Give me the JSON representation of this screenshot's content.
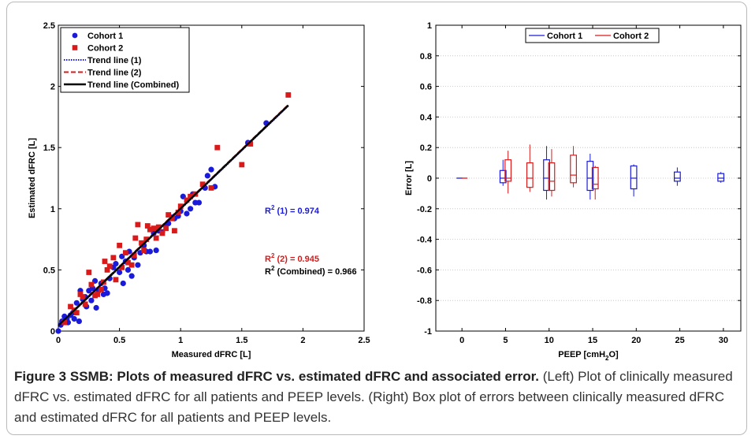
{
  "caption": {
    "label": "Figure 3",
    "title": "SSMB: Plots of measured dFRC vs. estimated dFRC and associated error.",
    "text": "(Left) Plot of clinically measured dFRC vs. estimated dFRC for all patients and PEEP levels. (Right) Box plot of errors between clinically measured dFRC and estimated dFRC for all patients and PEEP levels."
  },
  "colors": {
    "cohort1": "#1a1adb",
    "cohort2": "#d91a1a",
    "combined": "#000000"
  },
  "chart_data": [
    {
      "type": "scatter",
      "xlabel": "Measured dFRC [L]",
      "ylabel": "Estimated dFRC [L]",
      "xlim": [
        0,
        2.5
      ],
      "ylim": [
        0,
        2.5
      ],
      "xticks": [
        "0",
        "0.5",
        "1",
        "1.5",
        "2",
        "2.5"
      ],
      "yticks": [
        "0",
        "0.5",
        "1",
        "1.5",
        "2",
        "2.5"
      ],
      "grid": false,
      "legend_position": "top-left",
      "legend": [
        "Cohort 1",
        "Cohort 2",
        "Trend line (1)",
        "Trend line (2)",
        "Trend line (Combined)"
      ],
      "annotations": [
        {
          "label": "R",
          "sup": "2",
          "rest": " (1) = 0.974",
          "series": "cohort1"
        },
        {
          "label": "R",
          "sup": "2",
          "rest": " (2) = 0.945",
          "series": "cohort2"
        },
        {
          "label": "R",
          "sup": "2",
          "rest": " (Combined) = 0.966",
          "series": "combined"
        }
      ],
      "series": [
        {
          "name": "Cohort 1",
          "marker": "circle",
          "points": [
            [
              0.0,
              0.0
            ],
            [
              0.02,
              0.05
            ],
            [
              0.03,
              0.08
            ],
            [
              0.05,
              0.12
            ],
            [
              0.07,
              0.1
            ],
            [
              0.08,
              0.07
            ],
            [
              0.1,
              0.13
            ],
            [
              0.12,
              0.15
            ],
            [
              0.13,
              0.1
            ],
            [
              0.15,
              0.23
            ],
            [
              0.17,
              0.08
            ],
            [
              0.18,
              0.33
            ],
            [
              0.2,
              0.26
            ],
            [
              0.22,
              0.28
            ],
            [
              0.23,
              0.2
            ],
            [
              0.25,
              0.33
            ],
            [
              0.27,
              0.25
            ],
            [
              0.28,
              0.35
            ],
            [
              0.3,
              0.41
            ],
            [
              0.31,
              0.19
            ],
            [
              0.33,
              0.33
            ],
            [
              0.35,
              0.39
            ],
            [
              0.37,
              0.3
            ],
            [
              0.38,
              0.35
            ],
            [
              0.4,
              0.31
            ],
            [
              0.42,
              0.43
            ],
            [
              0.45,
              0.52
            ],
            [
              0.47,
              0.55
            ],
            [
              0.5,
              0.48
            ],
            [
              0.52,
              0.61
            ],
            [
              0.53,
              0.39
            ],
            [
              0.55,
              0.57
            ],
            [
              0.57,
              0.5
            ],
            [
              0.58,
              0.65
            ],
            [
              0.6,
              0.45
            ],
            [
              0.62,
              0.6
            ],
            [
              0.65,
              0.54
            ],
            [
              0.67,
              0.64
            ],
            [
              0.7,
              0.7
            ],
            [
              0.72,
              0.65
            ],
            [
              0.75,
              0.65
            ],
            [
              0.78,
              0.8
            ],
            [
              0.8,
              0.66
            ],
            [
              0.82,
              0.82
            ],
            [
              0.85,
              0.81
            ],
            [
              0.88,
              0.86
            ],
            [
              0.9,
              0.88
            ],
            [
              0.93,
              0.93
            ],
            [
              0.95,
              0.92
            ],
            [
              0.98,
              0.94
            ],
            [
              1.0,
              0.98
            ],
            [
              1.02,
              1.1
            ],
            [
              1.05,
              0.96
            ],
            [
              1.08,
              1.0
            ],
            [
              1.1,
              1.12
            ],
            [
              1.12,
              1.05
            ],
            [
              1.15,
              1.05
            ],
            [
              1.2,
              1.17
            ],
            [
              1.22,
              1.27
            ],
            [
              1.25,
              1.32
            ],
            [
              1.28,
              1.18
            ],
            [
              1.55,
              1.54
            ],
            [
              1.7,
              1.7
            ]
          ]
        },
        {
          "name": "Cohort 2",
          "marker": "square",
          "points": [
            [
              0.05,
              0.07
            ],
            [
              0.1,
              0.2
            ],
            [
              0.13,
              0.17
            ],
            [
              0.15,
              0.15
            ],
            [
              0.18,
              0.3
            ],
            [
              0.2,
              0.28
            ],
            [
              0.22,
              0.22
            ],
            [
              0.25,
              0.48
            ],
            [
              0.27,
              0.38
            ],
            [
              0.3,
              0.29
            ],
            [
              0.32,
              0.3
            ],
            [
              0.35,
              0.34
            ],
            [
              0.37,
              0.4
            ],
            [
              0.38,
              0.57
            ],
            [
              0.4,
              0.5
            ],
            [
              0.42,
              0.53
            ],
            [
              0.45,
              0.6
            ],
            [
              0.47,
              0.42
            ],
            [
              0.5,
              0.7
            ],
            [
              0.52,
              0.52
            ],
            [
              0.55,
              0.64
            ],
            [
              0.57,
              0.56
            ],
            [
              0.6,
              0.54
            ],
            [
              0.62,
              0.62
            ],
            [
              0.63,
              0.76
            ],
            [
              0.65,
              0.87
            ],
            [
              0.68,
              0.72
            ],
            [
              0.7,
              0.66
            ],
            [
              0.72,
              0.75
            ],
            [
              0.73,
              0.86
            ],
            [
              0.75,
              0.83
            ],
            [
              0.78,
              0.84
            ],
            [
              0.8,
              0.76
            ],
            [
              0.82,
              0.85
            ],
            [
              0.85,
              0.8
            ],
            [
              0.88,
              0.84
            ],
            [
              0.9,
              0.95
            ],
            [
              0.93,
              0.92
            ],
            [
              0.95,
              0.82
            ],
            [
              0.98,
              0.97
            ],
            [
              1.0,
              1.02
            ],
            [
              1.05,
              1.07
            ],
            [
              1.08,
              1.1
            ],
            [
              1.12,
              1.12
            ],
            [
              1.18,
              1.2
            ],
            [
              1.25,
              1.17
            ],
            [
              1.3,
              1.5
            ],
            [
              1.5,
              1.36
            ],
            [
              1.57,
              1.53
            ],
            [
              1.88,
              1.93
            ]
          ]
        }
      ],
      "trend_lines": [
        {
          "name": "Trend line (1)",
          "style": "dotted",
          "from": [
            0.0,
            0.04
          ],
          "to": [
            1.88,
            1.84
          ]
        },
        {
          "name": "Trend line (2)",
          "style": "dashed",
          "from": [
            0.0,
            0.05
          ],
          "to": [
            1.88,
            1.85
          ]
        },
        {
          "name": "Trend line (Combined)",
          "style": "solid",
          "from": [
            0.0,
            0.045
          ],
          "to": [
            1.88,
            1.845
          ]
        }
      ]
    },
    {
      "type": "box",
      "xlabel": "PEEP [cmH",
      "xlabel_sub": "2",
      "xlabel_end": "O]",
      "ylabel": "Error [L]",
      "xlim": [
        -3,
        32
      ],
      "ylim": [
        -1,
        1
      ],
      "xticks": [
        "0",
        "5",
        "10",
        "15",
        "20",
        "25",
        "30"
      ],
      "yticks": [
        "-1",
        "-0.8",
        "-0.6",
        "-0.4",
        "-0.2",
        "0",
        "0.2",
        "0.4",
        "0.6",
        "0.8",
        "1"
      ],
      "grid": true,
      "legend_position": "top-center",
      "legend": [
        "Cohort 1",
        "Cohort 2"
      ],
      "series": [
        {
          "name": "Cohort 1",
          "boxes": [
            {
              "x": 0,
              "min": 0.0,
              "q1": 0.0,
              "median": 0.0,
              "q3": 0.0,
              "max": 0.0
            },
            {
              "x": 5,
              "min": -0.05,
              "q1": -0.03,
              "median": 0.0,
              "q3": 0.05,
              "max": 0.12
            },
            {
              "x": 10,
              "min": -0.14,
              "q1": -0.08,
              "median": 0.0,
              "q3": 0.12,
              "max": 0.21
            },
            {
              "x": 15,
              "min": -0.14,
              "q1": -0.08,
              "median": 0.0,
              "q3": 0.11,
              "max": 0.16
            },
            {
              "x": 20,
              "min": -0.12,
              "q1": -0.07,
              "median": 0.0,
              "q3": 0.08,
              "max": 0.09
            },
            {
              "x": 25,
              "min": -0.05,
              "q1": -0.02,
              "median": 0.0,
              "q3": 0.04,
              "max": 0.07
            },
            {
              "x": 30,
              "min": -0.03,
              "q1": -0.02,
              "median": 0.0,
              "q3": 0.03,
              "max": 0.04
            }
          ]
        },
        {
          "name": "Cohort 2",
          "boxes": [
            {
              "x": 0,
              "min": 0.0,
              "q1": 0.0,
              "median": 0.0,
              "q3": 0.0,
              "max": 0.0
            },
            {
              "x": 5,
              "min": -0.1,
              "q1": -0.02,
              "median": 0.0,
              "q3": 0.12,
              "max": 0.18
            },
            {
              "x": 7.5,
              "min": -0.09,
              "q1": -0.06,
              "median": 0.0,
              "q3": 0.1,
              "max": 0.22
            },
            {
              "x": 10,
              "min": -0.12,
              "q1": -0.08,
              "median": -0.02,
              "q3": 0.1,
              "max": 0.19
            },
            {
              "x": 12.5,
              "min": -0.06,
              "q1": -0.03,
              "median": 0.02,
              "q3": 0.15,
              "max": 0.21
            },
            {
              "x": 15,
              "min": -0.14,
              "q1": -0.07,
              "median": -0.04,
              "q3": 0.07,
              "max": 0.08
            }
          ]
        }
      ]
    }
  ]
}
